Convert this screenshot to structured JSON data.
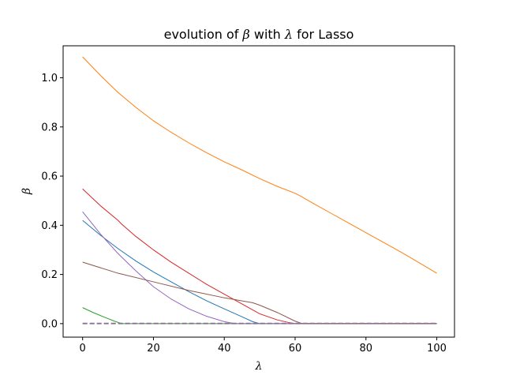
{
  "chart_data": {
    "type": "line",
    "title": {
      "prefix": "evolution of ",
      "symbol1": "β",
      "middle": " with ",
      "symbol2": "λ",
      "suffix": " for Lasso"
    },
    "xlabel": "λ",
    "ylabel": "β",
    "xlim": [
      -5.5,
      105
    ],
    "ylim": [
      -0.055,
      1.13
    ],
    "xticks": [
      0,
      20,
      40,
      60,
      80,
      100
    ],
    "yticks": [
      0.0,
      0.2,
      0.4,
      0.6,
      0.8,
      1.0
    ],
    "xtick_labels": [
      "0",
      "20",
      "40",
      "60",
      "80",
      "100"
    ],
    "ytick_labels": [
      "0.0",
      "0.2",
      "0.4",
      "0.6",
      "0.8",
      "1.0"
    ],
    "grid": false,
    "legend": false,
    "series": [
      {
        "color": "#1f77b4",
        "dash": false,
        "x": [
          0,
          5,
          10,
          15,
          20,
          25,
          30,
          35,
          40,
          45,
          48,
          50,
          60,
          80,
          100
        ],
        "y": [
          0.42,
          0.36,
          0.305,
          0.255,
          0.21,
          0.17,
          0.13,
          0.093,
          0.06,
          0.028,
          0.008,
          0.0,
          0.0,
          0.0,
          0.0
        ]
      },
      {
        "color": "#ff7f0e",
        "dash": false,
        "x": [
          0,
          2,
          5,
          10,
          15,
          20,
          25,
          30,
          35,
          40,
          45,
          50,
          55,
          60,
          62,
          65,
          70,
          75,
          80,
          85,
          90,
          95,
          100
        ],
        "y": [
          1.085,
          1.055,
          1.01,
          0.94,
          0.88,
          0.825,
          0.778,
          0.735,
          0.695,
          0.658,
          0.625,
          0.59,
          0.558,
          0.53,
          0.515,
          0.49,
          0.45,
          0.41,
          0.37,
          0.33,
          0.29,
          0.248,
          0.205
        ]
      },
      {
        "color": "#2ca02c",
        "dash": false,
        "x": [
          0,
          3,
          6,
          9,
          11,
          20,
          40,
          60,
          80,
          100
        ],
        "y": [
          0.065,
          0.045,
          0.027,
          0.01,
          0.0,
          0.0,
          0.0,
          0.0,
          0.0,
          0.0
        ]
      },
      {
        "color": "#d62728",
        "dash": false,
        "x": [
          0,
          5,
          10,
          11,
          15,
          20,
          25,
          30,
          35,
          40,
          45,
          50,
          55,
          58,
          60,
          80,
          100
        ],
        "y": [
          0.548,
          0.48,
          0.42,
          0.405,
          0.355,
          0.3,
          0.25,
          0.205,
          0.16,
          0.12,
          0.08,
          0.04,
          0.015,
          0.005,
          0.0,
          0.0,
          0.0
        ]
      },
      {
        "color": "#9467bd",
        "dash": false,
        "x": [
          0,
          5,
          10,
          15,
          20,
          25,
          30,
          35,
          40,
          43,
          60,
          80,
          100
        ],
        "y": [
          0.455,
          0.365,
          0.285,
          0.215,
          0.15,
          0.1,
          0.06,
          0.03,
          0.008,
          0.0,
          0.0,
          0.0,
          0.0
        ]
      },
      {
        "color": "#8c564b",
        "dash": false,
        "x": [
          0,
          10,
          20,
          30,
          40,
          48,
          50,
          55,
          60,
          62,
          80,
          100
        ],
        "y": [
          0.25,
          0.205,
          0.17,
          0.135,
          0.105,
          0.085,
          0.075,
          0.045,
          0.01,
          0.0,
          0.0,
          0.0
        ]
      },
      {
        "color": "#7f7f7f",
        "dash": true,
        "x": [
          0,
          100
        ],
        "y": [
          0.0,
          0.0
        ]
      },
      {
        "color": "#8c6d9c",
        "dash": true,
        "x": [
          0,
          100
        ],
        "y": [
          0.001,
          0.001
        ]
      }
    ]
  }
}
